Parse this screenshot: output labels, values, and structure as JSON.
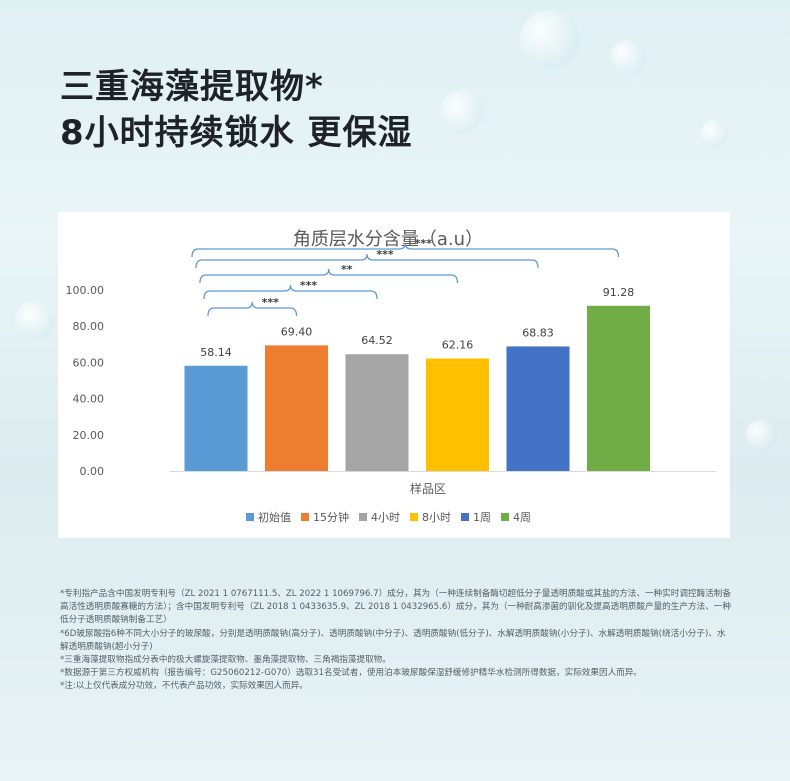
{
  "headline": {
    "line1": "三重海藻提取物*",
    "line2": "8小时持续锁水 更保湿"
  },
  "chart_data": {
    "type": "bar",
    "title": "角质层水分含量（a.u）",
    "xlabel": "样品区",
    "ylabel": "",
    "ylim": [
      0,
      100
    ],
    "yticks": [
      "0.00",
      "20.00",
      "40.00",
      "60.00",
      "80.00",
      "100.00"
    ],
    "grid": false,
    "legend_position": "bottom",
    "series": [
      {
        "name": "初始值",
        "value": 58.14,
        "label": "58.14",
        "color": "#5b9bd5"
      },
      {
        "name": "15分钟",
        "value": 69.4,
        "label": "69.40",
        "color": "#ed7d31"
      },
      {
        "name": "4小时",
        "value": 64.52,
        "label": "64.52",
        "color": "#a5a5a5"
      },
      {
        "name": "8小时",
        "value": 62.16,
        "label": "62.16",
        "color": "#ffc000"
      },
      {
        "name": "1周",
        "value": 68.83,
        "label": "68.83",
        "color": "#4472c4"
      },
      {
        "name": "4周",
        "value": 91.28,
        "label": "91.28",
        "color": "#70ad47"
      }
    ],
    "significance": [
      {
        "from": 0,
        "to": 1,
        "label": "***"
      },
      {
        "from": 0,
        "to": 2,
        "label": "***"
      },
      {
        "from": 0,
        "to": 3,
        "label": "**"
      },
      {
        "from": 0,
        "to": 4,
        "label": "***"
      },
      {
        "from": 0,
        "to": 5,
        "label": "***"
      }
    ],
    "bracket_color": "#5b9bd5"
  },
  "footnotes": [
    "*专利指产品含中国发明专利号（ZL 2021 1 0767111.5、ZL 2022 1 1069796.7）成分，其为（一种连续制备酶切超低分子量透明质酸或其盐的方法、一种实时调控酶活制备高活性透明质酸寡糖的方法）；含中国发明专利号（ZL 2018 1 0433635.9、ZL 2018 1 0432965.6）成分，其为（一种耐高渗菌的驯化及提高透明质酸产量的生产方法、一种低分子透明质酸钠制备工艺）",
    "*6D玻尿酸指6种不同大小分子的玻尿酸，分别是透明质酸钠(高分子)、透明质酸钠(中分子)、透明质酸钠(低分子)、水解透明质酸钠(小分子)、水解透明质酸钠(绕活小分子)、水解透明质酸钠(超小分子)",
    "*三重海藻提取物指成分表中的极大螺旋藻提取物、墨角藻提取物、三角褐指藻提取物。",
    "*数据源于第三方权威机构（报告编号：G25060212-G070）选取31名受试者，使用泊本玻尿酸保湿舒缓修护精华水检测所得数据，实际效果因人而异。",
    "*注:以上仅代表成分功效，不代表产品功效，实际效果因人而异。"
  ]
}
